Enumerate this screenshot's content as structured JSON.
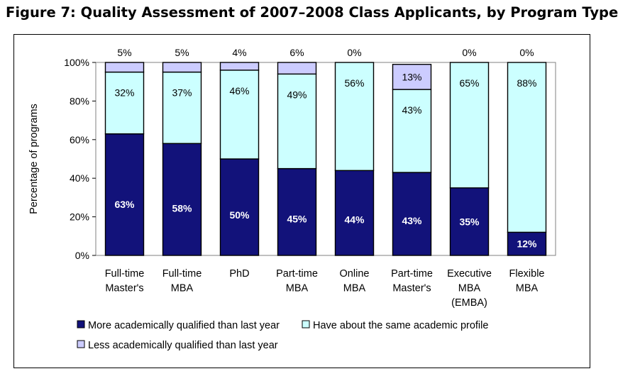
{
  "figure_title": "Figure 7: Quality Assessment of 2007–2008 Class Applicants, by Program Type",
  "colors": {
    "more": "#12127a",
    "same": "#ccffff",
    "less": "#ccccff",
    "outline": "#000000",
    "plot_border": "#808080"
  },
  "chart_data": {
    "type": "bar",
    "stacked": true,
    "percent": true,
    "title": "",
    "xlabel": "",
    "ylabel": "Percentage of programs",
    "ylim": [
      0,
      100
    ],
    "yticks": [
      "0%",
      "20%",
      "40%",
      "60%",
      "80%",
      "100%"
    ],
    "grid": false,
    "legend_position": "bottom",
    "categories": [
      [
        "Full-time",
        "Master's"
      ],
      [
        "Full-time",
        "MBA"
      ],
      [
        "PhD"
      ],
      [
        "Part-time",
        "MBA"
      ],
      [
        "Online",
        "MBA"
      ],
      [
        "Part-time",
        "Master's"
      ],
      [
        "Executive",
        "MBA",
        "(EMBA)"
      ],
      [
        "Flexible",
        "MBA"
      ]
    ],
    "series": [
      {
        "name": "More academically qualified than last year",
        "color": "#12127a",
        "values": [
          63,
          58,
          50,
          45,
          44,
          43,
          35,
          12
        ],
        "labels": [
          "63%",
          "58%",
          "50%",
          "45%",
          "44%",
          "43%",
          "35%",
          "12%"
        ]
      },
      {
        "name": "Have about the same academic profile",
        "color": "#ccffff",
        "values": [
          32,
          37,
          46,
          49,
          56,
          43,
          65,
          88
        ],
        "labels": [
          "32%",
          "37%",
          "46%",
          "49%",
          "56%",
          "43%",
          "65%",
          "88%"
        ]
      },
      {
        "name": "Less academically qualified than last year",
        "color": "#ccccff",
        "values": [
          5,
          5,
          4,
          6,
          0,
          13,
          0,
          0
        ],
        "labels": [
          "5%",
          "5%",
          "4%",
          "6%",
          "0%",
          "13%",
          "0%",
          "0%"
        ]
      }
    ]
  }
}
